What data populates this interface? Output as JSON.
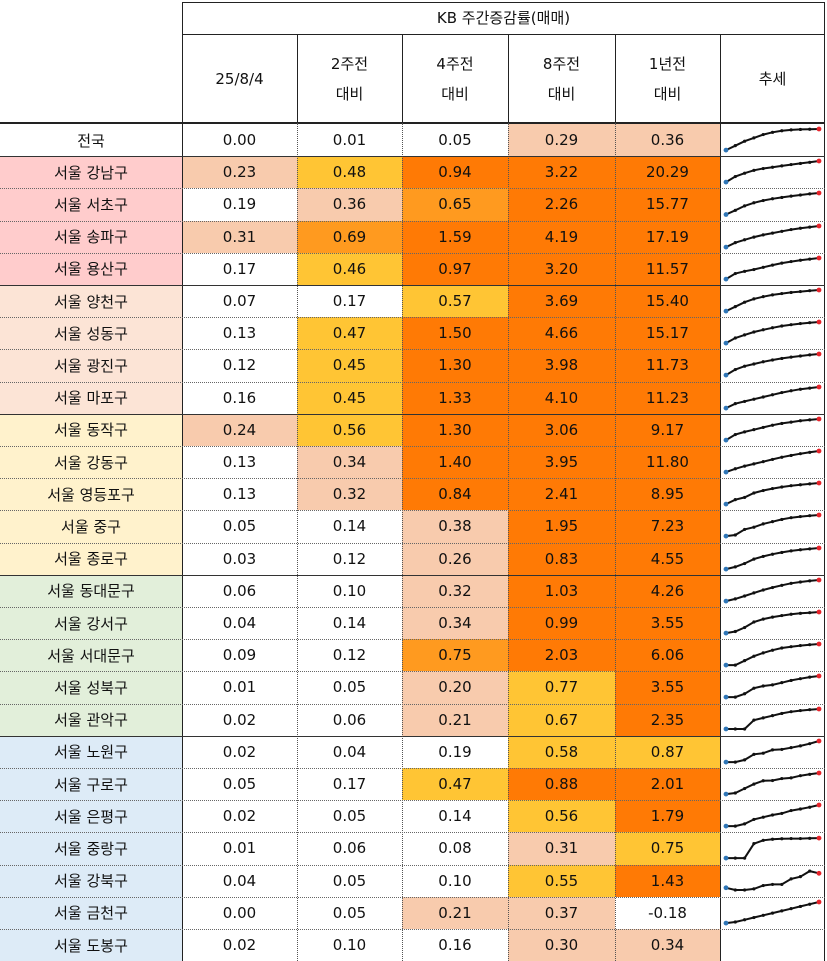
{
  "table": {
    "title": "KB 주간증감률(매매)",
    "columns": [
      {
        "line1": "25/8/4",
        "line2": ""
      },
      {
        "line1": "2주전",
        "line2": "대비"
      },
      {
        "line1": "4주전",
        "line2": "대비"
      },
      {
        "line1": "8주전",
        "line2": "대비"
      },
      {
        "line1": "1년전",
        "line2": "대비"
      },
      {
        "line1": "추세",
        "line2": ""
      }
    ],
    "rows": [
      {
        "name": "전국",
        "values": [
          "0.00",
          "0.01",
          "0.05",
          "0.29",
          "0.36"
        ],
        "group": 0
      },
      {
        "name": "서울 강남구",
        "values": [
          "0.23",
          "0.48",
          "0.94",
          "3.22",
          "20.29"
        ],
        "group": 1
      },
      {
        "name": "서울 서초구",
        "values": [
          "0.19",
          "0.36",
          "0.65",
          "2.26",
          "15.77"
        ],
        "group": 1
      },
      {
        "name": "서울 송파구",
        "values": [
          "0.31",
          "0.69",
          "1.59",
          "4.19",
          "17.19"
        ],
        "group": 1
      },
      {
        "name": "서울 용산구",
        "values": [
          "0.17",
          "0.46",
          "0.97",
          "3.20",
          "11.57"
        ],
        "group": 1
      },
      {
        "name": "서울 양천구",
        "values": [
          "0.07",
          "0.17",
          "0.57",
          "3.69",
          "15.40"
        ],
        "group": 2
      },
      {
        "name": "서울 성동구",
        "values": [
          "0.13",
          "0.47",
          "1.50",
          "4.66",
          "15.17"
        ],
        "group": 2
      },
      {
        "name": "서울 광진구",
        "values": [
          "0.12",
          "0.45",
          "1.30",
          "3.98",
          "11.73"
        ],
        "group": 2
      },
      {
        "name": "서울 마포구",
        "values": [
          "0.16",
          "0.45",
          "1.33",
          "4.10",
          "11.23"
        ],
        "group": 2
      },
      {
        "name": "서울 동작구",
        "values": [
          "0.24",
          "0.56",
          "1.30",
          "3.06",
          "9.17"
        ],
        "group": 3
      },
      {
        "name": "서울 강동구",
        "values": [
          "0.13",
          "0.34",
          "1.40",
          "3.95",
          "11.80"
        ],
        "group": 3
      },
      {
        "name": "서울 영등포구",
        "values": [
          "0.13",
          "0.32",
          "0.84",
          "2.41",
          "8.95"
        ],
        "group": 3
      },
      {
        "name": "서울 중구",
        "values": [
          "0.05",
          "0.14",
          "0.38",
          "1.95",
          "7.23"
        ],
        "group": 3
      },
      {
        "name": "서울 종로구",
        "values": [
          "0.03",
          "0.12",
          "0.26",
          "0.83",
          "4.55"
        ],
        "group": 3
      },
      {
        "name": "서울 동대문구",
        "values": [
          "0.06",
          "0.10",
          "0.32",
          "1.03",
          "4.26"
        ],
        "group": 4
      },
      {
        "name": "서울 강서구",
        "values": [
          "0.04",
          "0.14",
          "0.34",
          "0.99",
          "3.55"
        ],
        "group": 4
      },
      {
        "name": "서울 서대문구",
        "values": [
          "0.09",
          "0.12",
          "0.75",
          "2.03",
          "6.06"
        ],
        "group": 4
      },
      {
        "name": "서울 성북구",
        "values": [
          "0.01",
          "0.05",
          "0.20",
          "0.77",
          "3.55"
        ],
        "group": 4
      },
      {
        "name": "서울 관악구",
        "values": [
          "0.02",
          "0.06",
          "0.21",
          "0.67",
          "2.35"
        ],
        "group": 4
      },
      {
        "name": "서울 노원구",
        "values": [
          "0.02",
          "0.04",
          "0.19",
          "0.58",
          "0.87"
        ],
        "group": 5
      },
      {
        "name": "서울 구로구",
        "values": [
          "0.05",
          "0.17",
          "0.47",
          "0.88",
          "2.01"
        ],
        "group": 5
      },
      {
        "name": "서울 은평구",
        "values": [
          "0.02",
          "0.05",
          "0.14",
          "0.56",
          "1.79"
        ],
        "group": 5
      },
      {
        "name": "서울 중랑구",
        "values": [
          "0.01",
          "0.06",
          "0.08",
          "0.31",
          "0.75"
        ],
        "group": 5
      },
      {
        "name": "서울 강북구",
        "values": [
          "0.04",
          "0.05",
          "0.10",
          "0.55",
          "1.43"
        ],
        "group": 5
      },
      {
        "name": "서울 금천구",
        "values": [
          "0.00",
          "0.05",
          "0.21",
          "0.37",
          "-0.18"
        ],
        "group": 5
      },
      {
        "name": "서울 도봉구",
        "values": [
          "0.02",
          "0.10",
          "0.16",
          "0.30",
          "0.34"
        ],
        "group": 5
      }
    ]
  },
  "colors": {
    "group_fills": [
      "#ffffff",
      "#ffcccc",
      "#fce4d6",
      "#fff2cc",
      "#e2efda",
      "#ddebf7"
    ],
    "heat_peach": "#f8cbad",
    "heat_yellow": "#ffc534",
    "heat_orange": "#ff9a1f",
    "heat_dark_orange": "#ff7a05",
    "sparkline": "#111111",
    "spark_start": "#2e75b6",
    "spark_end": "#e8232a"
  },
  "chart_data": {
    "type": "table",
    "title": "KB 주간증감률(매매)",
    "columns": [
      "25/8/4",
      "2주전 대비",
      "4주전 대비",
      "8주전 대비",
      "1년전 대비",
      "추세"
    ],
    "heat_thresholds": {
      "peach": 0.2,
      "yellow": 0.3,
      "orange": 0.6,
      "dark_orange": 0.8
    },
    "trend_series": [
      [
        0.05,
        0.25,
        0.45,
        0.6,
        0.75,
        0.85,
        0.92,
        0.96,
        0.98,
        0.99,
        1.0
      ],
      [
        0.05,
        0.3,
        0.45,
        0.58,
        0.66,
        0.72,
        0.78,
        0.84,
        0.89,
        0.94,
        1.0
      ],
      [
        0.03,
        0.22,
        0.42,
        0.56,
        0.66,
        0.74,
        0.8,
        0.86,
        0.91,
        0.96,
        1.0
      ],
      [
        0.05,
        0.25,
        0.38,
        0.5,
        0.6,
        0.68,
        0.76,
        0.84,
        0.9,
        0.95,
        1.0
      ],
      [
        0.05,
        0.3,
        0.4,
        0.48,
        0.58,
        0.68,
        0.77,
        0.84,
        0.9,
        0.95,
        1.0
      ],
      [
        0.05,
        0.25,
        0.45,
        0.6,
        0.7,
        0.78,
        0.84,
        0.89,
        0.93,
        0.97,
        1.0
      ],
      [
        0.05,
        0.28,
        0.42,
        0.55,
        0.65,
        0.74,
        0.82,
        0.88,
        0.93,
        0.97,
        1.0
      ],
      [
        0.05,
        0.3,
        0.45,
        0.55,
        0.65,
        0.73,
        0.8,
        0.86,
        0.91,
        0.96,
        1.0
      ],
      [
        0.05,
        0.25,
        0.35,
        0.45,
        0.55,
        0.65,
        0.75,
        0.83,
        0.9,
        0.95,
        1.0
      ],
      [
        0.05,
        0.3,
        0.42,
        0.52,
        0.62,
        0.72,
        0.8,
        0.86,
        0.92,
        0.96,
        1.0
      ],
      [
        0.05,
        0.2,
        0.32,
        0.42,
        0.52,
        0.62,
        0.72,
        0.8,
        0.88,
        0.94,
        1.0
      ],
      [
        0.05,
        0.25,
        0.35,
        0.55,
        0.66,
        0.75,
        0.82,
        0.88,
        0.92,
        0.96,
        1.0
      ],
      [
        0.05,
        0.1,
        0.35,
        0.45,
        0.6,
        0.7,
        0.8,
        0.88,
        0.93,
        0.97,
        1.0
      ],
      [
        0.05,
        0.15,
        0.3,
        0.5,
        0.62,
        0.72,
        0.8,
        0.87,
        0.92,
        0.96,
        1.0
      ],
      [
        0.05,
        0.15,
        0.28,
        0.42,
        0.55,
        0.66,
        0.76,
        0.85,
        0.91,
        0.96,
        1.0
      ],
      [
        0.05,
        0.12,
        0.3,
        0.55,
        0.68,
        0.77,
        0.84,
        0.9,
        0.94,
        0.97,
        1.0
      ],
      [
        0.05,
        0.05,
        0.25,
        0.45,
        0.6,
        0.72,
        0.82,
        0.88,
        0.93,
        0.97,
        1.0
      ],
      [
        0.05,
        0.05,
        0.2,
        0.45,
        0.55,
        0.6,
        0.7,
        0.8,
        0.88,
        0.95,
        1.0
      ],
      [
        0.1,
        0.1,
        0.1,
        0.5,
        0.6,
        0.7,
        0.8,
        0.88,
        0.93,
        0.97,
        1.0
      ],
      [
        0.05,
        0.05,
        0.15,
        0.4,
        0.45,
        0.6,
        0.62,
        0.7,
        0.78,
        0.88,
        1.0
      ],
      [
        0.05,
        0.1,
        0.3,
        0.5,
        0.65,
        0.66,
        0.75,
        0.78,
        0.88,
        0.94,
        1.0
      ],
      [
        0.05,
        0.05,
        0.15,
        0.35,
        0.45,
        0.55,
        0.62,
        0.75,
        0.82,
        0.9,
        1.0
      ],
      [
        0.05,
        0.05,
        0.05,
        0.7,
        0.85,
        0.9,
        0.92,
        0.93,
        0.93,
        0.94,
        0.95
      ],
      [
        0.2,
        0.1,
        0.1,
        0.15,
        0.3,
        0.35,
        0.35,
        0.6,
        0.7,
        0.95,
        0.85
      ],
      [
        0.05,
        0.1,
        0.2,
        0.3,
        0.4,
        0.5,
        0.6,
        0.7,
        0.8,
        0.9,
        1.0
      ]
    ]
  }
}
